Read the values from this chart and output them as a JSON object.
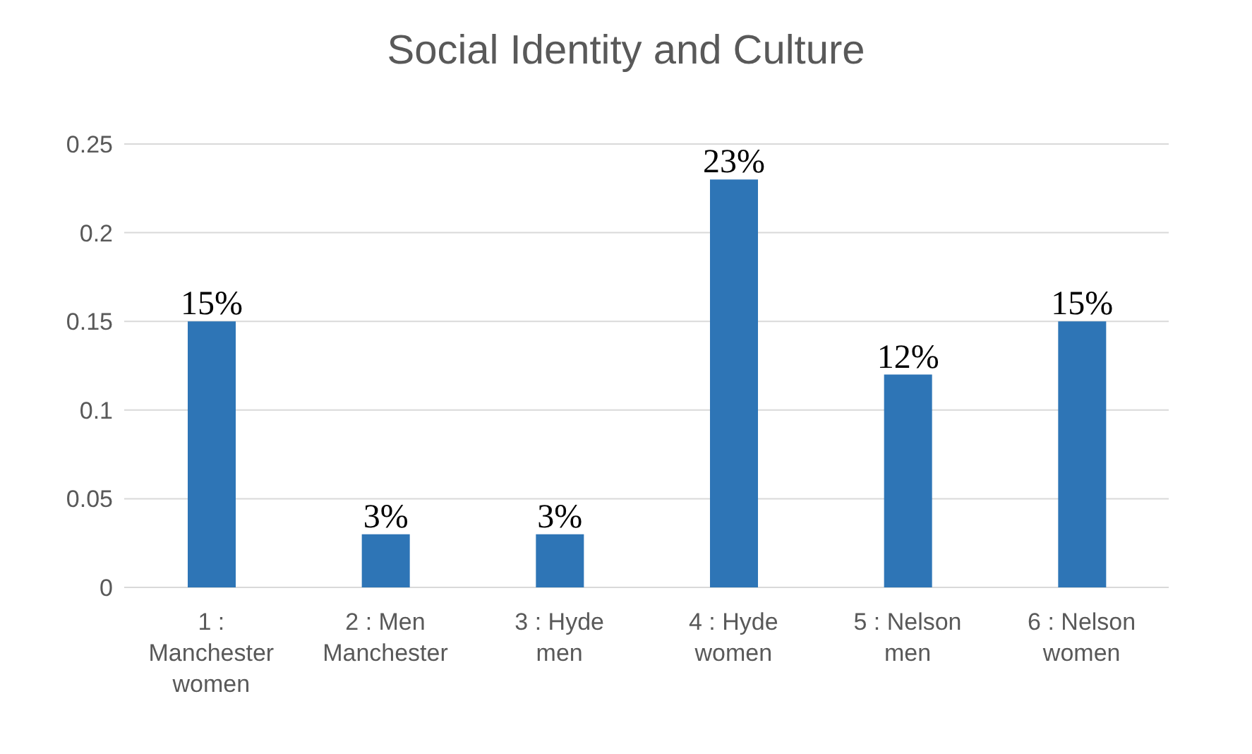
{
  "chart_data": {
    "type": "bar",
    "title": "Social Identity and Culture",
    "categories": [
      "1 : Manchester women",
      "2 : Men Manchester",
      "3 : Hyde men",
      "4 : Hyde women",
      "5 : Nelson men",
      "6 : Nelson women"
    ],
    "values": [
      0.15,
      0.03,
      0.03,
      0.23,
      0.12,
      0.15
    ],
    "value_labels": [
      "15%",
      "3%",
      "3%",
      "23%",
      "12%",
      "15%"
    ],
    "color": "#2e75b6",
    "ylim": [
      0,
      0.25
    ],
    "yticks": [
      0,
      0.05,
      0.1,
      0.15,
      0.2,
      0.25
    ],
    "grid": "y"
  }
}
